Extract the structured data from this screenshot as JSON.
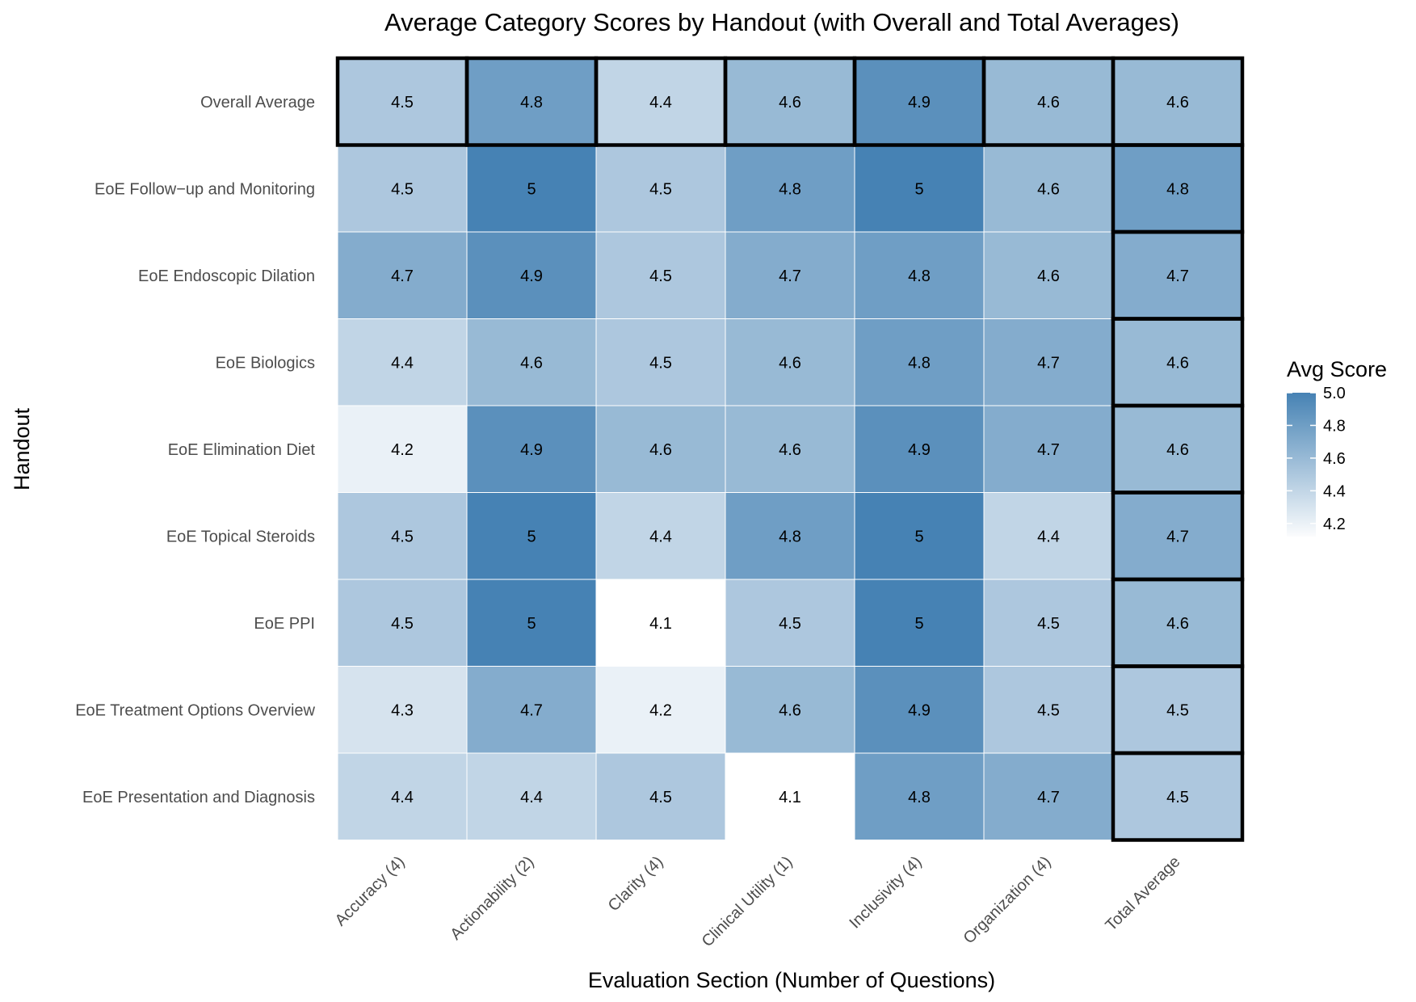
{
  "chart_data": {
    "type": "heatmap",
    "title": "Average Category Scores by Handout (with Overall and Total Averages)",
    "xlabel": "Evaluation Section (Number of Questions)",
    "ylabel": "Handout",
    "columns": [
      "Accuracy (4)",
      "Actionability (2)",
      "Clarity (4)",
      "Clinical Utility (1)",
      "Inclusivity (4)",
      "Organization (4)",
      "Total Average"
    ],
    "rows": [
      {
        "label": "Overall Average",
        "values": [
          4.5,
          4.8,
          4.4,
          4.6,
          4.9,
          4.6,
          4.6
        ],
        "display": [
          "4.5",
          "4.8",
          "4.4",
          "4.6",
          "4.9",
          "4.6",
          "4.6"
        ]
      },
      {
        "label": "EoE Follow−up and Monitoring",
        "values": [
          4.5,
          5.0,
          4.5,
          4.8,
          5.0,
          4.6,
          4.8
        ],
        "display": [
          "4.5",
          "5",
          "4.5",
          "4.8",
          "5",
          "4.6",
          "4.8"
        ]
      },
      {
        "label": "EoE Endoscopic Dilation",
        "values": [
          4.7,
          4.9,
          4.5,
          4.7,
          4.8,
          4.6,
          4.7
        ],
        "display": [
          "4.7",
          "4.9",
          "4.5",
          "4.7",
          "4.8",
          "4.6",
          "4.7"
        ]
      },
      {
        "label": "EoE Biologics",
        "values": [
          4.4,
          4.6,
          4.5,
          4.6,
          4.8,
          4.7,
          4.6
        ],
        "display": [
          "4.4",
          "4.6",
          "4.5",
          "4.6",
          "4.8",
          "4.7",
          "4.6"
        ]
      },
      {
        "label": "EoE Elimination Diet",
        "values": [
          4.2,
          4.9,
          4.6,
          4.6,
          4.9,
          4.7,
          4.6
        ],
        "display": [
          "4.2",
          "4.9",
          "4.6",
          "4.6",
          "4.9",
          "4.7",
          "4.6"
        ]
      },
      {
        "label": "EoE Topical Steroids",
        "values": [
          4.5,
          5.0,
          4.4,
          4.8,
          5.0,
          4.4,
          4.7
        ],
        "display": [
          "4.5",
          "5",
          "4.4",
          "4.8",
          "5",
          "4.4",
          "4.7"
        ]
      },
      {
        "label": "EoE PPI",
        "values": [
          4.5,
          5.0,
          4.1,
          4.5,
          5.0,
          4.5,
          4.6
        ],
        "display": [
          "4.5",
          "5",
          "4.1",
          "4.5",
          "5",
          "4.5",
          "4.6"
        ]
      },
      {
        "label": "EoE Treatment Options Overview",
        "values": [
          4.3,
          4.7,
          4.2,
          4.6,
          4.9,
          4.5,
          4.5
        ],
        "display": [
          "4.3",
          "4.7",
          "4.2",
          "4.6",
          "4.9",
          "4.5",
          "4.5"
        ]
      },
      {
        "label": "EoE Presentation and Diagnosis",
        "values": [
          4.4,
          4.4,
          4.5,
          4.1,
          4.8,
          4.7,
          4.5
        ],
        "display": [
          "4.4",
          "4.4",
          "4.5",
          "4.1",
          "4.8",
          "4.7",
          "4.5"
        ]
      }
    ],
    "highlight": {
      "row": "Overall Average",
      "column": "Total Average"
    },
    "color_scale": {
      "min": 4.1,
      "max": 5.0,
      "low_color": "#ffffff",
      "high_color": "#4682b4"
    },
    "legend": {
      "title": "Avg Score",
      "ticks": [
        "5.0",
        "4.8",
        "4.6",
        "4.4",
        "4.2"
      ],
      "placement": "right"
    },
    "grid": false
  }
}
